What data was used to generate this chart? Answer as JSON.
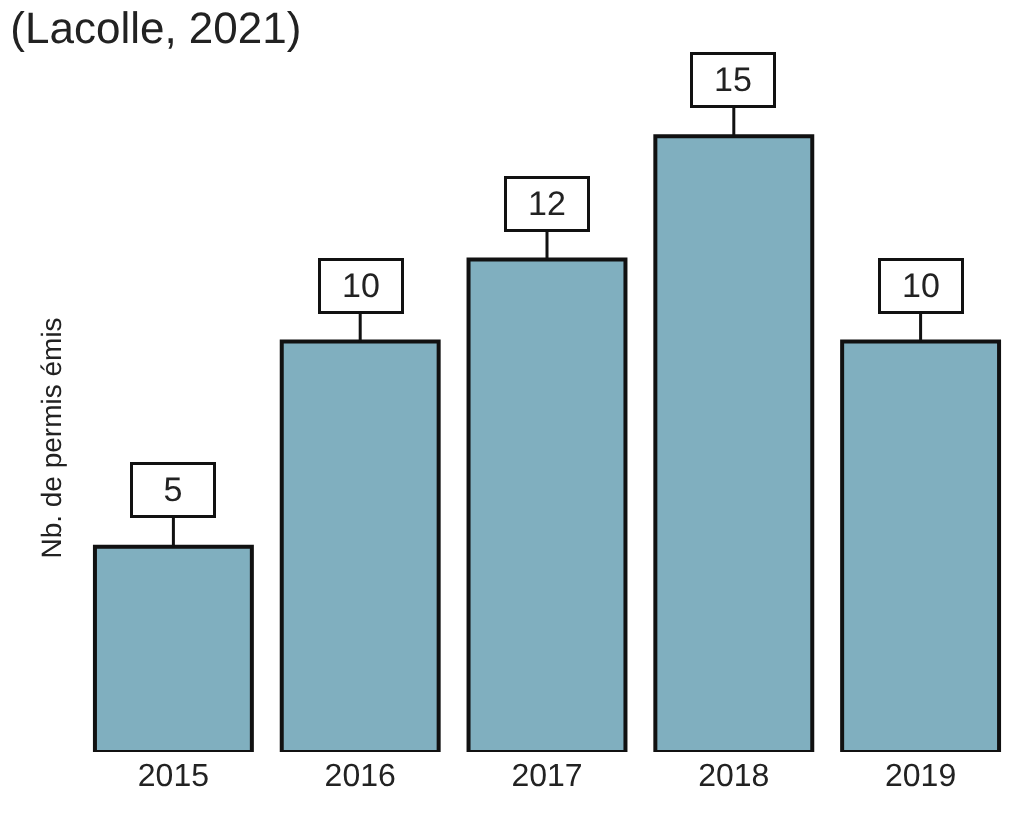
{
  "chart_data": {
    "type": "bar",
    "title": "(Lacolle, 2021)",
    "ylabel": "Nb. de permis émis",
    "categories": [
      "2015",
      "2016",
      "2017",
      "2018",
      "2019"
    ],
    "values": [
      5,
      10,
      12,
      15,
      10
    ],
    "color": "#80afbf",
    "data_labels": true
  }
}
